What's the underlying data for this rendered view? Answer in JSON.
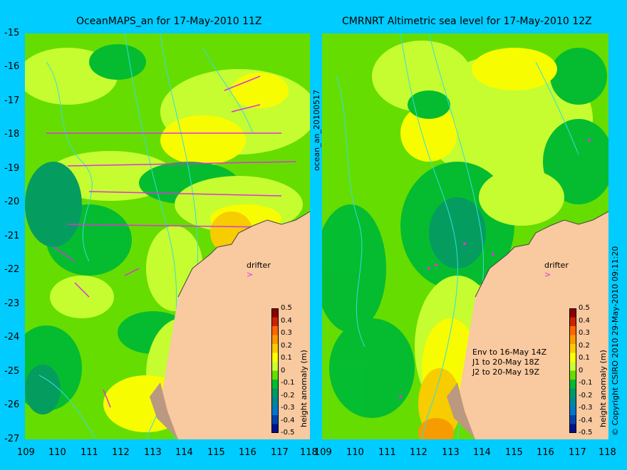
{
  "left_panel": {
    "title": "OceanMAPS_an for 17-May-2010 11Z",
    "side_label": "ocean_an_20100517",
    "drifter_label": "drifter",
    "colorbar_label": "height anomaly (m)"
  },
  "right_panel": {
    "title": "CMRNRT Altimetric sea level  for 17-May-2010 12Z",
    "drifter_label": "drifter",
    "colorbar_label": "height anomaly (m)",
    "notes": [
      "Env to 16-May 14Z",
      "J1 to 20-May 18Z",
      "J2 to 20-May 19Z"
    ],
    "copyright": "© Copyright CSIRO 2010   29-May-2010 09:11:20"
  },
  "axes": {
    "lat_ticks": [
      "-15",
      "-16",
      "-17",
      "-18",
      "-19",
      "-20",
      "-21",
      "-22",
      "-23",
      "-24",
      "-25",
      "-26",
      "-27"
    ],
    "lon_ticks": [
      "109",
      "110",
      "111",
      "112",
      "113",
      "114",
      "115",
      "116",
      "117",
      "118"
    ],
    "lon_range": [
      109,
      118
    ],
    "lat_range": [
      -27,
      -15
    ]
  },
  "colorbar": {
    "ticks": [
      "0.5",
      "0.4",
      "0.3",
      "0.2",
      "0.1",
      "0",
      "-0.1",
      "-0.2",
      "-0.3",
      "-0.4",
      "-0.5"
    ],
    "colors": [
      "#8b0000",
      "#cc2200",
      "#ff6600",
      "#ff9900",
      "#ffcc00",
      "#ffff00",
      "#ccff33",
      "#66dd00",
      "#00bb33",
      "#009966",
      "#008899",
      "#0077cc",
      "#0044aa",
      "#001188"
    ]
  },
  "colors": {
    "background": "#00ccff",
    "land": "#f9c9a0",
    "contour": "#33dddd",
    "arrows": "#dd33dd"
  }
}
